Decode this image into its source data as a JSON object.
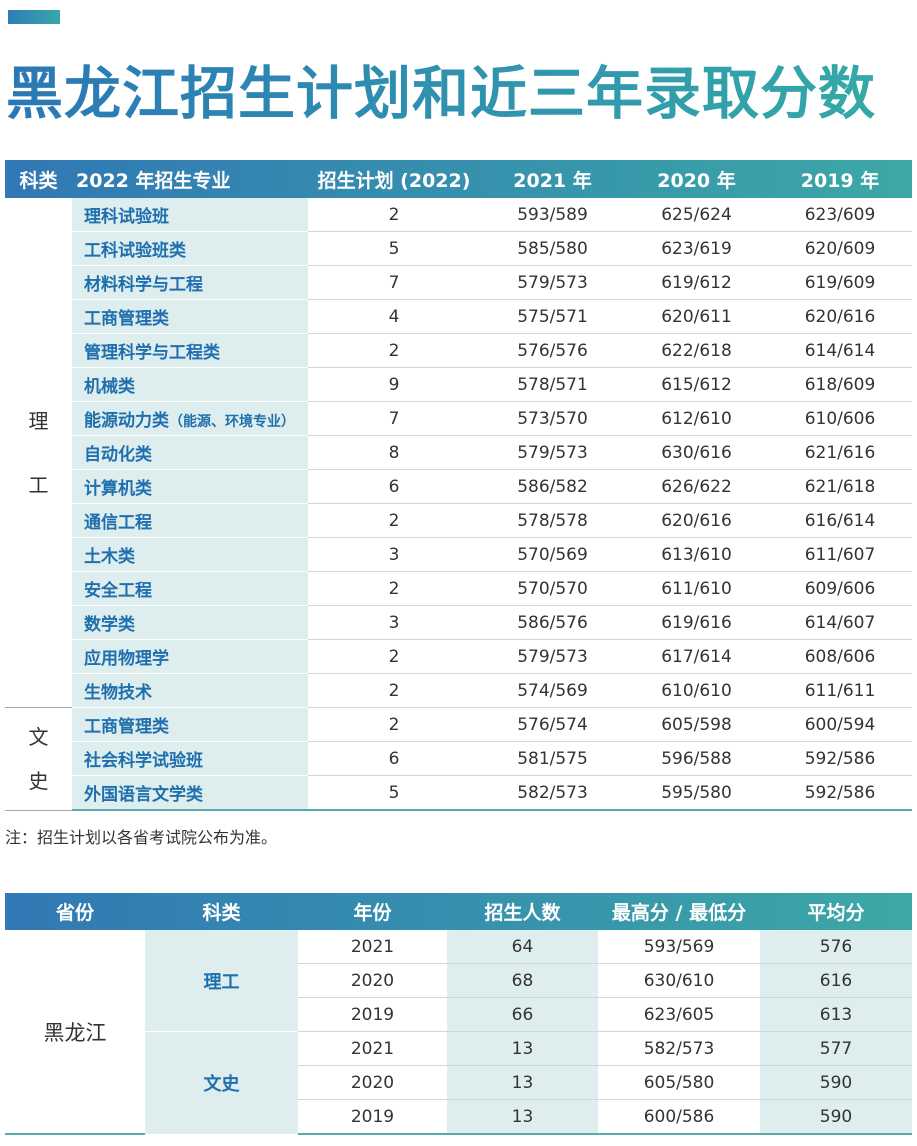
{
  "header": {
    "title": "黑龙江招生计划和近三年录取分数"
  },
  "table1": {
    "columns": [
      "科类",
      "2022 年招生专业",
      "招生计划 (2022)",
      "2021 年",
      "2020 年",
      "2019 年"
    ],
    "groups": [
      {
        "label": "理工",
        "rows": [
          {
            "major": "理科试验班",
            "plan": 2,
            "s2021": "593/589",
            "s2020": "625/624",
            "s2019": "623/609"
          },
          {
            "major": "工科试验班类",
            "plan": 5,
            "s2021": "585/580",
            "s2020": "623/619",
            "s2019": "620/609"
          },
          {
            "major": "材料科学与工程",
            "plan": 7,
            "s2021": "579/573",
            "s2020": "619/612",
            "s2019": "619/609"
          },
          {
            "major": "工商管理类",
            "plan": 4,
            "s2021": "575/571",
            "s2020": "620/611",
            "s2019": "620/616"
          },
          {
            "major": "管理科学与工程类",
            "plan": 2,
            "s2021": "576/576",
            "s2020": "622/618",
            "s2019": "614/614"
          },
          {
            "major": "机械类",
            "plan": 9,
            "s2021": "578/571",
            "s2020": "615/612",
            "s2019": "618/609"
          },
          {
            "major": "能源动力类",
            "detail": "（能源、环境专业）",
            "plan": 7,
            "s2021": "573/570",
            "s2020": "612/610",
            "s2019": "610/606"
          },
          {
            "major": "自动化类",
            "plan": 8,
            "s2021": "579/573",
            "s2020": "630/616",
            "s2019": "621/616"
          },
          {
            "major": "计算机类",
            "plan": 6,
            "s2021": "586/582",
            "s2020": "626/622",
            "s2019": "621/618"
          },
          {
            "major": "通信工程",
            "plan": 2,
            "s2021": "578/578",
            "s2020": "620/616",
            "s2019": "616/614"
          },
          {
            "major": "土木类",
            "plan": 3,
            "s2021": "570/569",
            "s2020": "613/610",
            "s2019": "611/607"
          },
          {
            "major": "安全工程",
            "plan": 2,
            "s2021": "570/570",
            "s2020": "611/610",
            "s2019": "609/606"
          },
          {
            "major": "数学类",
            "plan": 3,
            "s2021": "586/576",
            "s2020": "619/616",
            "s2019": "614/607"
          },
          {
            "major": "应用物理学",
            "plan": 2,
            "s2021": "579/573",
            "s2020": "617/614",
            "s2019": "608/606"
          },
          {
            "major": "生物技术",
            "plan": 2,
            "s2021": "574/569",
            "s2020": "610/610",
            "s2019": "611/611"
          }
        ]
      },
      {
        "label": "文史",
        "rows": [
          {
            "major": "工商管理类",
            "plan": 2,
            "s2021": "576/574",
            "s2020": "605/598",
            "s2019": "600/594"
          },
          {
            "major": "社会科学试验班",
            "plan": 6,
            "s2021": "581/575",
            "s2020": "596/588",
            "s2019": "592/586"
          },
          {
            "major": "外国语言文学类",
            "plan": 5,
            "s2021": "582/573",
            "s2020": "595/580",
            "s2019": "592/586"
          }
        ]
      }
    ]
  },
  "note": "注：招生计划以各省考试院公布为准。",
  "table2": {
    "columns": [
      "省份",
      "科类",
      "年份",
      "招生人数",
      "最高分 / 最低分",
      "平均分"
    ],
    "province": "黑龙江",
    "groups": [
      {
        "label": "理工",
        "rows": [
          {
            "year": 2021,
            "count": 64,
            "range": "593/569",
            "avg": 576
          },
          {
            "year": 2020,
            "count": 68,
            "range": "630/610",
            "avg": 616
          },
          {
            "year": 2019,
            "count": 66,
            "range": "623/605",
            "avg": 613
          }
        ]
      },
      {
        "label": "文史",
        "rows": [
          {
            "year": 2021,
            "count": 13,
            "range": "582/573",
            "avg": 577
          },
          {
            "year": 2020,
            "count": 13,
            "range": "605/580",
            "avg": 590
          },
          {
            "year": 2019,
            "count": 13,
            "range": "600/586",
            "avg": 590
          }
        ]
      }
    ]
  }
}
